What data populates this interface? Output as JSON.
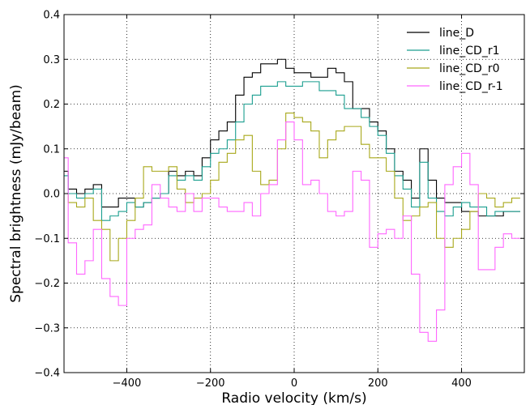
{
  "chart_data": {
    "type": "line",
    "step": true,
    "title": "",
    "xlabel": "Radio velocity (km/s)",
    "ylabel": "Spectral brightness (mJy/beam)",
    "xlim": [
      -550,
      550
    ],
    "ylim": [
      -0.4,
      0.4
    ],
    "xticks": [
      -400,
      -200,
      0,
      200,
      400
    ],
    "xtick_labels": [
      "−400",
      "−200",
      "0",
      "200",
      "400"
    ],
    "yticks": [
      -0.4,
      -0.3,
      -0.2,
      -0.1,
      0.0,
      0.1,
      0.2,
      0.3,
      0.4
    ],
    "ytick_labels": [
      "−0.4",
      "−0.3",
      "−0.2",
      "−0.1",
      "0.0",
      "0.1",
      "0.2",
      "0.3",
      "0.4"
    ],
    "grid": true,
    "legend_position": "top-right",
    "x": [
      -550,
      -530,
      -510,
      -490,
      -470,
      -450,
      -430,
      -410,
      -390,
      -370,
      -350,
      -330,
      -310,
      -290,
      -270,
      -250,
      -230,
      -210,
      -190,
      -170,
      -150,
      -130,
      -110,
      -90,
      -70,
      -50,
      -30,
      -10,
      10,
      30,
      50,
      70,
      90,
      110,
      130,
      150,
      170,
      190,
      210,
      230,
      250,
      270,
      290,
      310,
      330,
      350,
      370,
      390,
      410,
      430,
      450,
      470,
      490,
      510,
      530
    ],
    "series": [
      {
        "name": "line_D",
        "color": "#000000",
        "values": [
          0.05,
          0.01,
          0.0,
          0.01,
          0.02,
          -0.03,
          -0.03,
          -0.01,
          -0.01,
          -0.03,
          -0.02,
          -0.01,
          0.0,
          0.05,
          0.04,
          0.05,
          0.04,
          0.08,
          0.12,
          0.14,
          0.16,
          0.22,
          0.26,
          0.27,
          0.29,
          0.29,
          0.3,
          0.28,
          0.27,
          0.27,
          0.26,
          0.26,
          0.28,
          0.27,
          0.25,
          0.19,
          0.19,
          0.16,
          0.14,
          0.1,
          0.05,
          0.03,
          -0.01,
          0.1,
          0.03,
          -0.01,
          -0.02,
          -0.02,
          -0.04,
          -0.04,
          -0.05,
          -0.05,
          -0.05,
          -0.04,
          -0.04
        ]
      },
      {
        "name": "line_CD_r1",
        "color": "#1a9e8f",
        "values": [
          0.04,
          0.0,
          -0.01,
          0.0,
          0.01,
          -0.06,
          -0.05,
          -0.04,
          -0.02,
          -0.03,
          -0.02,
          -0.01,
          0.0,
          0.04,
          0.03,
          0.04,
          0.03,
          0.06,
          0.09,
          0.1,
          0.12,
          0.16,
          0.2,
          0.22,
          0.24,
          0.24,
          0.25,
          0.24,
          0.24,
          0.25,
          0.25,
          0.23,
          0.23,
          0.22,
          0.19,
          0.19,
          0.17,
          0.15,
          0.13,
          0.09,
          0.04,
          0.01,
          -0.03,
          0.07,
          -0.01,
          -0.04,
          -0.05,
          -0.03,
          -0.02,
          -0.03,
          -0.03,
          -0.05,
          -0.04,
          -0.04,
          -0.04
        ]
      },
      {
        "name": "line_CD_r0",
        "color": "#a8a81a",
        "values": [
          0.0,
          -0.02,
          -0.03,
          -0.01,
          -0.06,
          -0.08,
          -0.15,
          -0.1,
          -0.06,
          -0.01,
          0.06,
          0.05,
          0.05,
          0.06,
          0.01,
          -0.02,
          -0.01,
          0.0,
          0.03,
          0.07,
          0.09,
          0.12,
          0.13,
          0.05,
          0.02,
          0.03,
          0.1,
          0.18,
          0.17,
          0.16,
          0.14,
          0.08,
          0.12,
          0.14,
          0.15,
          0.15,
          0.11,
          0.08,
          0.08,
          0.05,
          -0.01,
          -0.06,
          -0.05,
          -0.03,
          -0.02,
          -0.1,
          -0.12,
          -0.1,
          -0.08,
          -0.04,
          0.0,
          -0.01,
          -0.03,
          -0.02,
          -0.01
        ]
      },
      {
        "name": "line_CD_r-1",
        "color": "#ff66ff",
        "values": [
          0.08,
          -0.11,
          -0.18,
          -0.15,
          -0.08,
          -0.19,
          -0.23,
          -0.25,
          -0.1,
          -0.08,
          -0.07,
          0.02,
          -0.01,
          -0.03,
          -0.04,
          0.0,
          -0.04,
          -0.01,
          -0.01,
          -0.03,
          -0.04,
          -0.04,
          -0.02,
          -0.05,
          0.0,
          0.02,
          0.12,
          0.16,
          0.12,
          0.02,
          0.03,
          0.0,
          -0.04,
          -0.05,
          -0.04,
          0.05,
          0.03,
          -0.12,
          -0.09,
          -0.08,
          -0.1,
          -0.05,
          -0.18,
          -0.31,
          -0.33,
          -0.26,
          0.02,
          0.06,
          0.09,
          0.02,
          -0.17,
          -0.17,
          -0.12,
          -0.09,
          -0.1
        ]
      }
    ]
  }
}
